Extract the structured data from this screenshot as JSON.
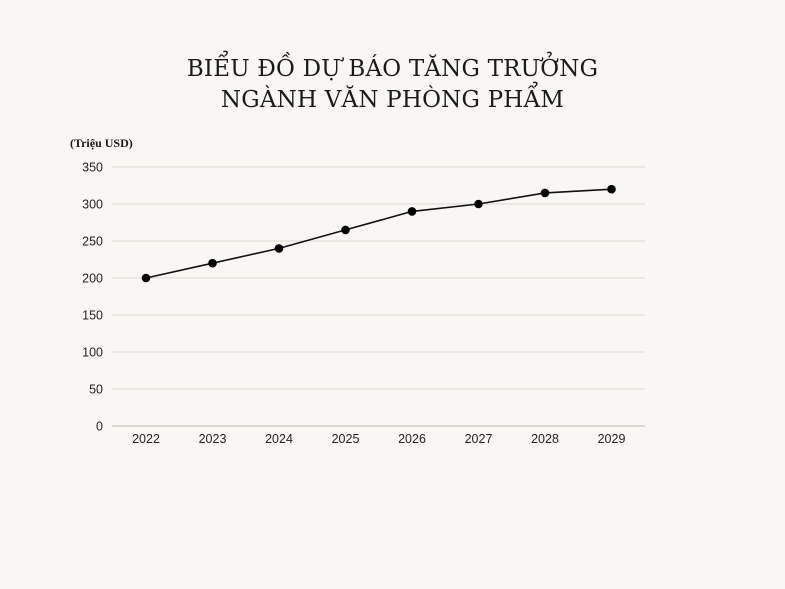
{
  "chart_data": {
    "type": "line",
    "title_line1": "BIỂU ĐỒ DỰ BÁO TĂNG TRƯỞNG",
    "title_line2": "NGÀNH VĂN PHÒNG PHẨM",
    "unit_label": "(Triệu USD)",
    "xlabel": "",
    "ylabel": "",
    "x": [
      "2022",
      "2023",
      "2024",
      "2025",
      "2026",
      "2027",
      "2028",
      "2029"
    ],
    "series": [
      {
        "values": [
          200,
          220,
          240,
          265,
          290,
          300,
          315,
          320
        ]
      }
    ],
    "ylim": [
      0,
      350
    ],
    "yticks": [
      0,
      50,
      100,
      150,
      200,
      250,
      300,
      350
    ],
    "grid": true,
    "legend": "none",
    "colors": {
      "line": "#111111",
      "marker": "#000000",
      "grid": "#dddad4",
      "axis": "#bdbab3"
    }
  }
}
